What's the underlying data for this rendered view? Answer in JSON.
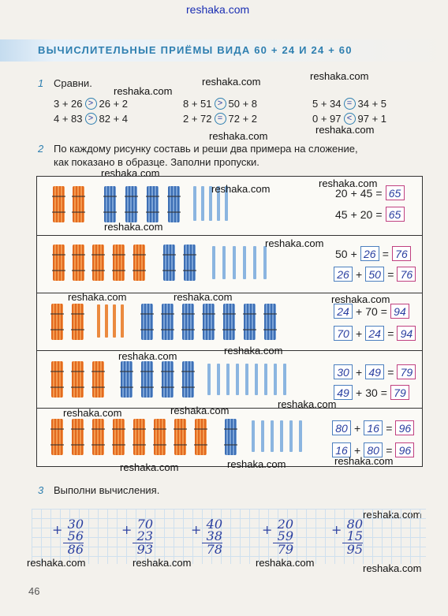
{
  "watermark": "reshaka.com",
  "header": {
    "title": "ВЫЧИСЛИТЕЛЬНЫЕ ПРИЁМЫ ВИДА 60 + 24 И 24 + 60"
  },
  "task1": {
    "num": "1",
    "text": "Сравни.",
    "comparisons": [
      {
        "left": "3 + 26",
        "sign": ">",
        "right": "26 + 2"
      },
      {
        "left": "4 + 83",
        "sign": ">",
        "right": "82 + 4"
      },
      {
        "left": "8 + 51",
        "sign": ">",
        "right": "50 + 8"
      },
      {
        "left": "2 + 72",
        "sign": "=",
        "right": "72 + 2"
      },
      {
        "left": "5 + 34",
        "sign": "=",
        "right": "34 + 5"
      },
      {
        "left": "0 + 97",
        "sign": "<",
        "right": "97 + 1"
      }
    ]
  },
  "task2": {
    "num": "2",
    "text_line1": "По каждому рисунку составь и реши два примера на сложение,",
    "text_line2": "как показано в образце. Заполни пропуски.",
    "rows": [
      {
        "eq1": {
          "a": "20",
          "b": "45",
          "r": "65"
        },
        "eq2": {
          "a": "45",
          "b": "20",
          "r": "65"
        }
      },
      {
        "eq1": {
          "a": "50",
          "b": "26",
          "r": "76"
        },
        "eq2": {
          "a": "26",
          "b": "50",
          "r": "76"
        }
      },
      {
        "eq1": {
          "a": "24",
          "b": "70",
          "r": "94"
        },
        "eq2": {
          "a": "70",
          "b": "24",
          "r": "94"
        }
      },
      {
        "eq1": {
          "a": "30",
          "b": "49",
          "r": "79"
        },
        "eq2": {
          "a": "49",
          "b": "30",
          "r": "79"
        }
      },
      {
        "eq1": {
          "a": "80",
          "b": "16",
          "r": "96"
        },
        "eq2": {
          "a": "16",
          "b": "80",
          "r": "96"
        }
      }
    ],
    "ops": {
      "plus": "+",
      "eq": "="
    }
  },
  "task3": {
    "num": "3",
    "text": "Выполни вычисления.",
    "columns": [
      {
        "a": "30",
        "b": "56",
        "r": "86"
      },
      {
        "a": "70",
        "b": "23",
        "r": "93"
      },
      {
        "a": "40",
        "b": "38",
        "r": "78"
      },
      {
        "a": "20",
        "b": "59",
        "r": "79"
      },
      {
        "a": "80",
        "b": "15",
        "r": "95"
      }
    ],
    "plus": "+"
  },
  "page_number": "46"
}
